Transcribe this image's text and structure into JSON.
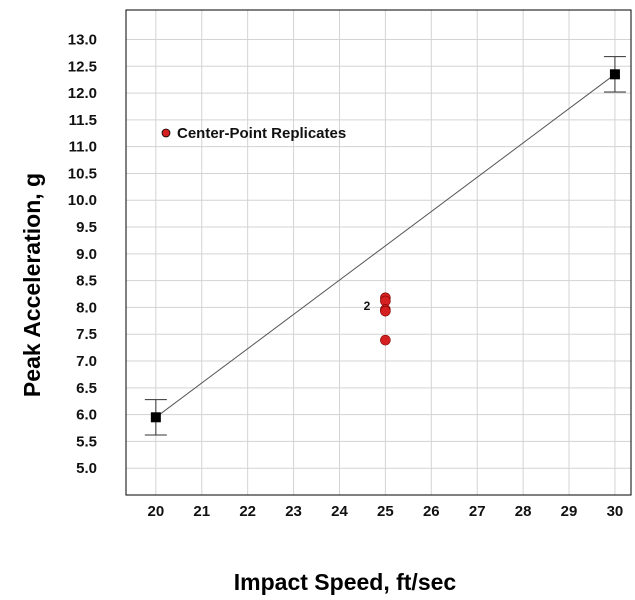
{
  "chart_data": {
    "type": "scatter",
    "xlabel": "Impact Speed, ft/sec",
    "ylabel": "Peak Acceleration, g",
    "xlim": [
      19.35,
      30.35
    ],
    "ylim": [
      4.5,
      13.55
    ],
    "xticks": [
      20,
      21,
      22,
      23,
      24,
      25,
      26,
      27,
      28,
      29,
      30
    ],
    "xtick_labels": [
      "20",
      "21",
      "22",
      "23",
      "24",
      "25",
      "26",
      "27",
      "28",
      "29",
      "30"
    ],
    "yticks": [
      5.0,
      5.5,
      6.0,
      6.5,
      7.0,
      7.5,
      8.0,
      8.5,
      9.0,
      9.5,
      10.0,
      10.5,
      11.0,
      11.5,
      12.0,
      12.5,
      13.0
    ],
    "ytick_labels": [
      "5.0",
      "5.5",
      "6.0",
      "6.5",
      "7.0",
      "7.5",
      "8.0",
      "8.5",
      "9.0",
      "9.5",
      "10.0",
      "10.5",
      "11.0",
      "11.5",
      "12.0",
      "12.5",
      "13.0"
    ],
    "grid": true,
    "fit_line": {
      "x": [
        20,
        30
      ],
      "y": [
        5.95,
        12.35
      ]
    },
    "series": [
      {
        "marker": "square",
        "color": "#000000",
        "points": [
          {
            "x": 20,
            "y": 5.95,
            "err_low": 5.62,
            "err_high": 6.28
          },
          {
            "x": 30,
            "y": 12.35,
            "err_low": 12.02,
            "err_high": 12.68
          }
        ]
      },
      {
        "name": "Center-Point Replicates",
        "marker": "circle",
        "color": "#d42020",
        "points": [
          {
            "x": 25,
            "y": 8.18
          },
          {
            "x": 25,
            "y": 8.12
          },
          {
            "x": 25,
            "y": 7.96
          },
          {
            "x": 25,
            "y": 7.93
          },
          {
            "x": 25,
            "y": 7.39
          }
        ]
      }
    ],
    "annotations": [
      {
        "text": "2",
        "x": 24.6,
        "y": 8.03
      }
    ],
    "legend": {
      "label": "Center-Point Replicates",
      "placement": "top-left"
    }
  }
}
